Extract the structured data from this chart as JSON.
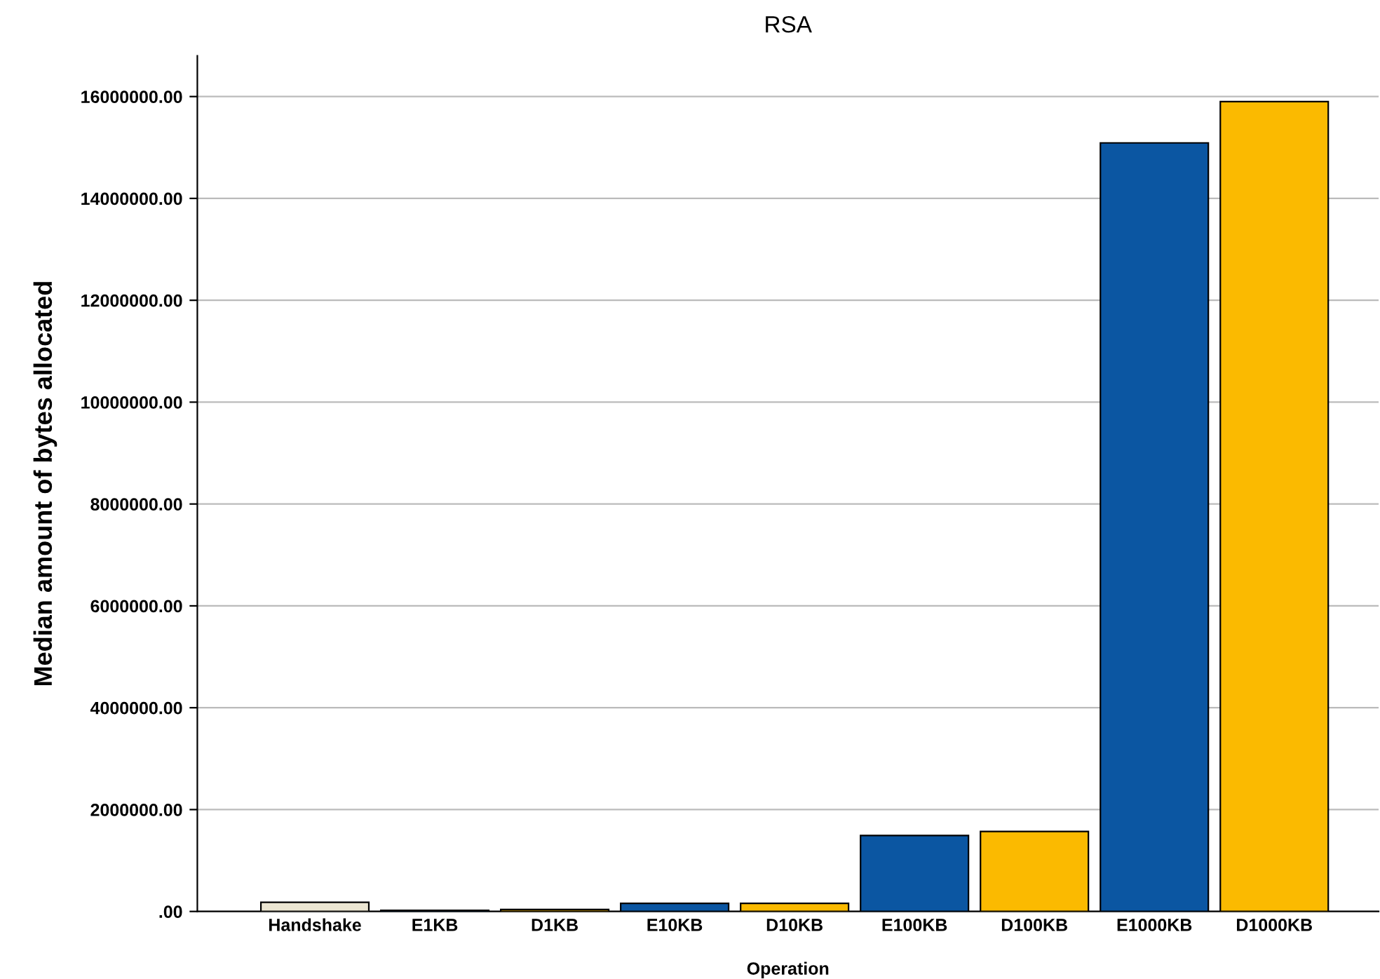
{
  "chart_data": {
    "type": "bar",
    "title": "RSA",
    "xlabel": "Operation",
    "ylabel": "Median amount of bytes allocated",
    "categories": [
      "Handshake",
      "E1KB",
      "D1KB",
      "E10KB",
      "D10KB",
      "E100KB",
      "D100KB",
      "E1000KB",
      "D1000KB"
    ],
    "values": [
      180000,
      20000,
      40000,
      160000,
      160000,
      1490000,
      1570000,
      15090000,
      15900000
    ],
    "colors": [
      "#ece6d2",
      "#0b56a2",
      "#fbba00",
      "#0b56a2",
      "#fbba00",
      "#0b56a2",
      "#fbba00",
      "#0b56a2",
      "#fbba00"
    ],
    "ylim": [
      0,
      16800000
    ],
    "yticks": [
      {
        "value": 0,
        "label": ".00"
      },
      {
        "value": 2000000,
        "label": "2000000.00"
      },
      {
        "value": 4000000,
        "label": "4000000.00"
      },
      {
        "value": 6000000,
        "label": "6000000.00"
      },
      {
        "value": 8000000,
        "label": "8000000.00"
      },
      {
        "value": 10000000,
        "label": "10000000.00"
      },
      {
        "value": 12000000,
        "label": "12000000.00"
      },
      {
        "value": 14000000,
        "label": "14000000.00"
      },
      {
        "value": 16000000,
        "label": "16000000.00"
      }
    ],
    "grid": "y",
    "legend": false
  }
}
